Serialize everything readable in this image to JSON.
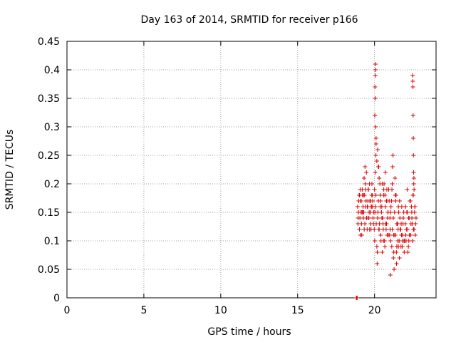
{
  "chart_data": {
    "type": "scatter",
    "title": "Day 163 of 2014, SRMTID for receiver p166",
    "xlabel": "GPS time / hours",
    "ylabel": "SRMTID / TECUs",
    "xlim": [
      0,
      24
    ],
    "ylim": [
      0,
      0.45
    ],
    "xticks": [
      0,
      5,
      10,
      15,
      20
    ],
    "xtick_labels": [
      "0",
      "5",
      "10",
      "15",
      "20"
    ],
    "yticks": [
      0,
      0.05,
      0.1,
      0.15,
      0.2,
      0.25,
      0.3,
      0.35,
      0.4,
      0.45
    ],
    "ytick_labels": [
      "0",
      "0.05",
      "0.1",
      "0.15",
      "0.2",
      "0.25",
      "0.3",
      "0.35",
      "0.4",
      "0.45"
    ],
    "grid": true,
    "marker": "+",
    "color": "#dd0000",
    "series": [
      {
        "name": "p166",
        "x": [
          18.82,
          18.83,
          18.84,
          18.85,
          18.86,
          18.87,
          18.9,
          18.95,
          19.0,
          19.05,
          19.1,
          19.15,
          19.2,
          19.25,
          19.3,
          19.35,
          19.4,
          19.45,
          19.5,
          19.55,
          19.6,
          19.65,
          19.7,
          19.75,
          19.8,
          19.85,
          19.9,
          19.95,
          18.92,
          18.97,
          19.02,
          19.07,
          19.12,
          19.17,
          19.22,
          19.27,
          19.32,
          19.37,
          19.42,
          19.47,
          19.52,
          19.57,
          19.62,
          19.67,
          19.72,
          19.77,
          19.82,
          19.87,
          18.93,
          19.03,
          19.13,
          19.23,
          19.33,
          19.43,
          19.53,
          19.63,
          19.73,
          19.83,
          19.93,
          19.08,
          19.18,
          19.28,
          19.38,
          19.48,
          19.58,
          19.68,
          19.78,
          19.88,
          19.98,
          20.0,
          20.02,
          20.03,
          20.04,
          20.05,
          20.06,
          20.07,
          20.08,
          20.09,
          20.1,
          20.01,
          20.03,
          20.05,
          20.07,
          20.09,
          20.11,
          20.15,
          20.2,
          20.25,
          20.3,
          20.35,
          20.4,
          20.45,
          20.5,
          20.55,
          20.6,
          20.65,
          20.7,
          20.75,
          20.8,
          20.85,
          20.9,
          20.95,
          20.17,
          20.22,
          20.27,
          20.32,
          20.37,
          20.42,
          20.47,
          20.52,
          20.57,
          20.62,
          20.67,
          20.72,
          20.77,
          20.82,
          20.87,
          20.92,
          20.18,
          20.28,
          20.38,
          20.48,
          20.58,
          20.68,
          20.78,
          20.88,
          20.98,
          20.1,
          20.15,
          20.2,
          20.25,
          20.3,
          20.4,
          20.5,
          20.6,
          20.7,
          20.8,
          21.0,
          21.05,
          21.1,
          21.15,
          21.2,
          21.25,
          21.3,
          21.35,
          21.4,
          21.45,
          21.5,
          21.55,
          21.6,
          21.65,
          21.7,
          21.75,
          21.8,
          21.85,
          21.9,
          21.95,
          21.02,
          21.07,
          21.12,
          21.17,
          21.22,
          21.27,
          21.32,
          21.37,
          21.42,
          21.47,
          21.52,
          21.57,
          21.62,
          21.67,
          21.72,
          21.77,
          21.82,
          21.87,
          21.92,
          21.03,
          21.13,
          21.23,
          21.33,
          21.43,
          21.53,
          21.63,
          21.73,
          21.83,
          21.93,
          21.05,
          21.15,
          21.25,
          21.35,
          21.45,
          21.55,
          22.0,
          22.05,
          22.1,
          22.15,
          22.2,
          22.25,
          22.3,
          22.35,
          22.4,
          22.45,
          22.5,
          22.55,
          22.6,
          22.65,
          22.7,
          22.02,
          22.07,
          22.12,
          22.17,
          22.22,
          22.27,
          22.32,
          22.37,
          22.42,
          22.47,
          22.52,
          22.57,
          22.62,
          22.67,
          22.03,
          22.13,
          22.23,
          22.33,
          22.43,
          22.53,
          22.63,
          22.48,
          22.49,
          22.5,
          22.51,
          22.52,
          22.53,
          22.54,
          22.55,
          22.56,
          22.57
        ],
        "y": [
          0.0,
          0.0,
          0.0,
          0.0,
          0.0,
          0.0,
          0.16,
          0.15,
          0.18,
          0.14,
          0.17,
          0.13,
          0.19,
          0.16,
          0.15,
          0.18,
          0.2,
          0.17,
          0.14,
          0.16,
          0.19,
          0.15,
          0.17,
          0.13,
          0.16,
          0.18,
          0.14,
          0.15,
          0.13,
          0.17,
          0.12,
          0.19,
          0.15,
          0.11,
          0.18,
          0.14,
          0.21,
          0.13,
          0.16,
          0.22,
          0.12,
          0.17,
          0.14,
          0.2,
          0.15,
          0.12,
          0.18,
          0.16,
          0.14,
          0.18,
          0.17,
          0.15,
          0.12,
          0.19,
          0.16,
          0.14,
          0.17,
          0.2,
          0.13,
          0.11,
          0.15,
          0.18,
          0.23,
          0.14,
          0.19,
          0.12,
          0.16,
          0.17,
          0.12,
          0.19,
          0.32,
          0.37,
          0.35,
          0.39,
          0.41,
          0.4,
          0.3,
          0.25,
          0.28,
          0.1,
          0.15,
          0.22,
          0.16,
          0.18,
          0.13,
          0.09,
          0.14,
          0.17,
          0.12,
          0.2,
          0.11,
          0.15,
          0.08,
          0.13,
          0.18,
          0.1,
          0.16,
          0.12,
          0.19,
          0.14,
          0.11,
          0.17,
          0.06,
          0.15,
          0.23,
          0.13,
          0.18,
          0.1,
          0.16,
          0.14,
          0.12,
          0.2,
          0.09,
          0.13,
          0.17,
          0.11,
          0.15,
          0.19,
          0.08,
          0.12,
          0.16,
          0.14,
          0.1,
          0.18,
          0.13,
          0.15,
          0.11,
          0.27,
          0.24,
          0.26,
          0.23,
          0.21,
          0.17,
          0.2,
          0.19,
          0.22,
          0.17,
          0.14,
          0.1,
          0.17,
          0.12,
          0.25,
          0.08,
          0.15,
          0.11,
          0.18,
          0.09,
          0.13,
          0.16,
          0.1,
          0.14,
          0.12,
          0.11,
          0.09,
          0.13,
          0.15,
          0.1,
          0.12,
          0.16,
          0.09,
          0.23,
          0.14,
          0.05,
          0.11,
          0.17,
          0.08,
          0.13,
          0.1,
          0.15,
          0.07,
          0.12,
          0.09,
          0.16,
          0.11,
          0.14,
          0.1,
          0.04,
          0.19,
          0.07,
          0.21,
          0.06,
          0.12,
          0.17,
          0.13,
          0.1,
          0.08,
          0.15,
          0.2,
          0.11,
          0.18,
          0.13,
          0.09,
          0.13,
          0.1,
          0.15,
          0.12,
          0.09,
          0.14,
          0.17,
          0.11,
          0.16,
          0.13,
          0.18,
          0.12,
          0.15,
          0.11,
          0.14,
          0.16,
          0.12,
          0.19,
          0.08,
          0.14,
          0.11,
          0.17,
          0.13,
          0.15,
          0.1,
          0.18,
          0.12,
          0.16,
          0.13,
          0.11,
          0.15,
          0.1,
          0.17,
          0.14,
          0.12,
          0.16,
          0.39,
          0.38,
          0.37,
          0.32,
          0.28,
          0.25,
          0.22,
          0.2,
          0.21,
          0.19
        ]
      }
    ]
  }
}
